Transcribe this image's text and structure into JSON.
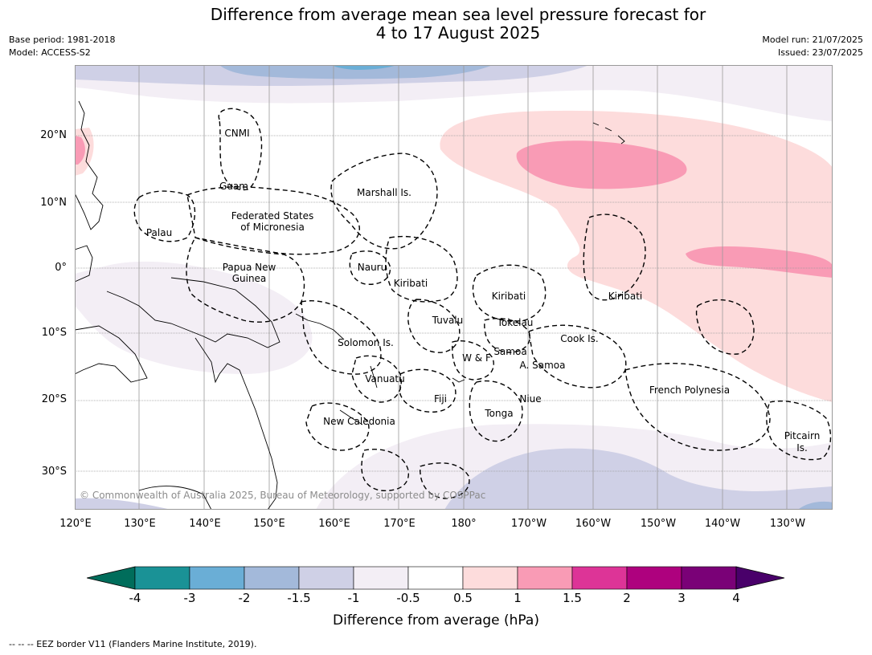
{
  "header": {
    "title_line1": "Difference from average mean sea level pressure forecast for",
    "title_line2": "4 to 17 August 2025",
    "base_period": "Base period: 1981-2018",
    "model": "Model: ACCESS-S2",
    "model_run": "Model run: 21/07/2025",
    "issued": "Issued: 23/07/2025"
  },
  "map": {
    "lat_labels": [
      "20°N",
      "10°N",
      "0°",
      "10°S",
      "20°S",
      "30°S"
    ],
    "lon_labels": [
      "120°E",
      "130°E",
      "140°E",
      "150°E",
      "160°E",
      "170°E",
      "180°",
      "170°W",
      "160°W",
      "150°W",
      "140°W",
      "130°W"
    ],
    "places": {
      "cnmi": "CNMI",
      "guam": "Guam",
      "marshall": "Marshall Is.",
      "fsm_1": "Federated States",
      "fsm_2": "of Micronesia",
      "palau": "Palau",
      "png_1": "Papua New",
      "png_2": "Guinea",
      "nauru": "Nauru",
      "kiribati_w": "Kiribati",
      "kiribati_c": "Kiribati",
      "kiribati_e": "Kiribati",
      "tuvalu": "Tuvalu",
      "tokelau": "Tokelau",
      "solomon": "Solomon Is.",
      "samoa": "Samoa",
      "wf": "W & F",
      "asamoa": "A. Samoa",
      "cook": "Cook Is.",
      "vanuatu": "Vanuatu",
      "fiji": "Fiji",
      "niue": "Niue",
      "tonga": "Tonga",
      "french_polynesia": "French Polynesia",
      "new_caledonia": "New Caledonia",
      "pitcairn_1": "Pitcairn",
      "pitcairn_2": "Is."
    },
    "copyright": "© Commonwealth of Australia 2025, Bureau of Meteorology, supported by COSPPac"
  },
  "legend": {
    "title": "Difference from average (hPa)",
    "ticks": [
      "-4",
      "-3",
      "-2",
      "-1.5",
      "-1",
      "-0.5",
      "0.5",
      "1",
      "1.5",
      "2",
      "3",
      "4"
    ],
    "colors": [
      "#006d5b",
      "#1a9296",
      "#6aaed6",
      "#a3b9da",
      "#cfd0e6",
      "#f3eef5",
      "#ffffff",
      "#fddcdc",
      "#f99bb5",
      "#dd3497",
      "#ae017e",
      "#7a0177",
      "#49006a"
    ]
  },
  "footnote": "--  --  -- EEZ border V11 (Flanders Marine Institute, 2019)."
}
